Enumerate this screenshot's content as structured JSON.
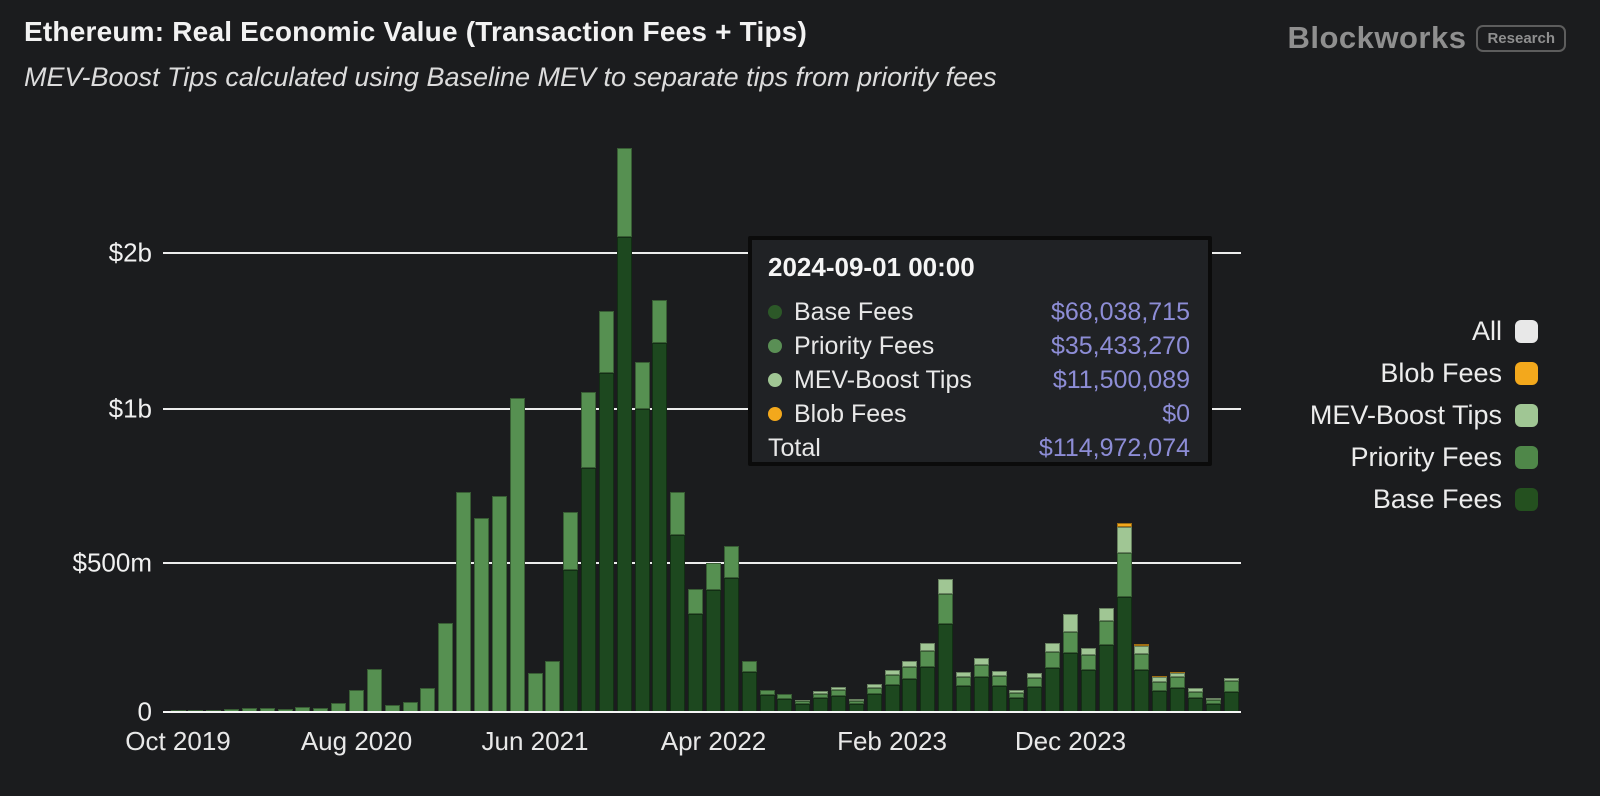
{
  "header": {
    "title": "Ethereum: Real Economic Value (Transaction Fees + Tips)",
    "subtitle": "MEV-Boost Tips calculated using Baseline MEV to separate tips from priority fees",
    "brand": "Blockworks",
    "brand_badge": "Research"
  },
  "y_axis": {
    "ticks": [
      {
        "label": "$2b",
        "value": 2000
      },
      {
        "label": "$1b",
        "value": 1000
      },
      {
        "label": "$500m",
        "value": 500
      },
      {
        "label": "0",
        "value": 0
      }
    ]
  },
  "x_axis": {
    "ticks": [
      {
        "label": "Oct 2019",
        "month_index": 0
      },
      {
        "label": "Aug 2020",
        "month_index": 10
      },
      {
        "label": "Jun 2021",
        "month_index": 20
      },
      {
        "label": "Apr 2022",
        "month_index": 30
      },
      {
        "label": "Feb 2023",
        "month_index": 40
      },
      {
        "label": "Dec 2023",
        "month_index": 50
      }
    ]
  },
  "legend": {
    "items": [
      {
        "label": "All",
        "color": "#e8e8e8"
      },
      {
        "label": "Blob Fees",
        "color": "#f3a81c"
      },
      {
        "label": "MEV-Boost Tips",
        "color": "#a0c694"
      },
      {
        "label": "Priority Fees",
        "color": "#4f8749"
      },
      {
        "label": "Base Fees",
        "color": "#24501f"
      }
    ]
  },
  "tooltip": {
    "title": "2024-09-01 00:00",
    "rows": [
      {
        "label": "Base Fees",
        "color": "#2c5828",
        "value": "$68,038,715"
      },
      {
        "label": "Priority Fees",
        "color": "#5a8f55",
        "value": "$35,433,270"
      },
      {
        "label": "MEV-Boost Tips",
        "color": "#a0c694",
        "value": "$11,500,089"
      },
      {
        "label": "Blob Fees",
        "color": "#f3a81c",
        "value": "$0"
      }
    ],
    "total_label": "Total",
    "total_value": "$114,972,074"
  },
  "chart_data": {
    "type": "bar",
    "stacked": true,
    "title": "Ethereum: Real Economic Value (Transaction Fees + Tips)",
    "unit": "USD millions",
    "grid": "horizontal",
    "legend_position": "right",
    "y_scale_note": "non-linear axis: ticks 0, $500m, $1b, $2b are equally spaced",
    "ylim": [
      0,
      3200
    ],
    "x": [
      "2019-10",
      "2019-11",
      "2019-12",
      "2020-01",
      "2020-02",
      "2020-03",
      "2020-04",
      "2020-05",
      "2020-06",
      "2020-07",
      "2020-08",
      "2020-09",
      "2020-10",
      "2020-11",
      "2020-12",
      "2021-01",
      "2021-02",
      "2021-03",
      "2021-04",
      "2021-05",
      "2021-06",
      "2021-07",
      "2021-08",
      "2021-09",
      "2021-10",
      "2021-11",
      "2021-12",
      "2022-01",
      "2022-02",
      "2022-03",
      "2022-04",
      "2022-05",
      "2022-06",
      "2022-07",
      "2022-08",
      "2022-09",
      "2022-10",
      "2022-11",
      "2022-12",
      "2023-01",
      "2023-02",
      "2023-03",
      "2023-04",
      "2023-05",
      "2023-06",
      "2023-07",
      "2023-08",
      "2023-09",
      "2023-10",
      "2023-11",
      "2023-12",
      "2024-01",
      "2024-02",
      "2024-03",
      "2024-04",
      "2024-05",
      "2024-06",
      "2024-07",
      "2024-08",
      "2024-09"
    ],
    "series": [
      {
        "name": "Base Fees",
        "color": "#1d481f",
        "values": [
          0,
          0,
          0,
          0,
          0,
          0,
          0,
          0,
          0,
          0,
          0,
          0,
          0,
          0,
          0,
          0,
          0,
          0,
          0,
          0,
          0,
          0,
          475,
          810,
          1230,
          2100,
          1000,
          1420,
          590,
          330,
          410,
          450,
          135,
          56,
          45,
          28,
          46,
          55,
          28,
          60,
          90,
          110,
          150,
          295,
          86,
          117,
          88,
          47,
          84,
          149,
          198,
          140,
          225,
          385,
          140,
          72,
          82,
          48,
          26,
          68.04
        ]
      },
      {
        "name": "Priority Fees",
        "color": "#569051",
        "values": [
          8,
          8,
          7,
          9,
          12,
          14,
          10,
          17,
          15,
          30,
          74,
          144,
          22,
          34,
          80,
          300,
          730,
          645,
          718,
          1070,
          131,
          171,
          192,
          300,
          400,
          570,
          300,
          280,
          140,
          83,
          90,
          105,
          36,
          18,
          15,
          8,
          16,
          19,
          10,
          22,
          33,
          40,
          54,
          100,
          31,
          42,
          32,
          17,
          31,
          54,
          70,
          50,
          82,
          148,
          55,
          30,
          34,
          20,
          13,
          35.43
        ]
      },
      {
        "name": "MEV-Boost Tips",
        "color": "#a0c694",
        "values": [
          0,
          0,
          0,
          0,
          0,
          0,
          0,
          0,
          0,
          0,
          0,
          0,
          0,
          0,
          0,
          0,
          0,
          0,
          0,
          0,
          0,
          0,
          0,
          0,
          0,
          0,
          0,
          0,
          0,
          0,
          0,
          0,
          0,
          0,
          0,
          4,
          8,
          10,
          6,
          12,
          18,
          21,
          28,
          51,
          17,
          22,
          17,
          10,
          16,
          29,
          62,
          25,
          42,
          85,
          28,
          16,
          16,
          11,
          8,
          11.5
        ]
      },
      {
        "name": "Blob Fees",
        "color": "#f3a81c",
        "values": [
          0,
          0,
          0,
          0,
          0,
          0,
          0,
          0,
          0,
          0,
          0,
          0,
          0,
          0,
          0,
          0,
          0,
          0,
          0,
          0,
          0,
          0,
          0,
          0,
          0,
          0,
          0,
          0,
          0,
          0,
          0,
          0,
          0,
          0,
          0,
          0,
          0,
          0,
          0,
          0,
          0,
          0,
          0,
          0,
          0,
          0,
          0,
          0,
          0,
          0,
          0,
          0,
          0,
          12,
          5,
          2,
          2,
          1,
          0.3,
          0
        ]
      }
    ]
  }
}
